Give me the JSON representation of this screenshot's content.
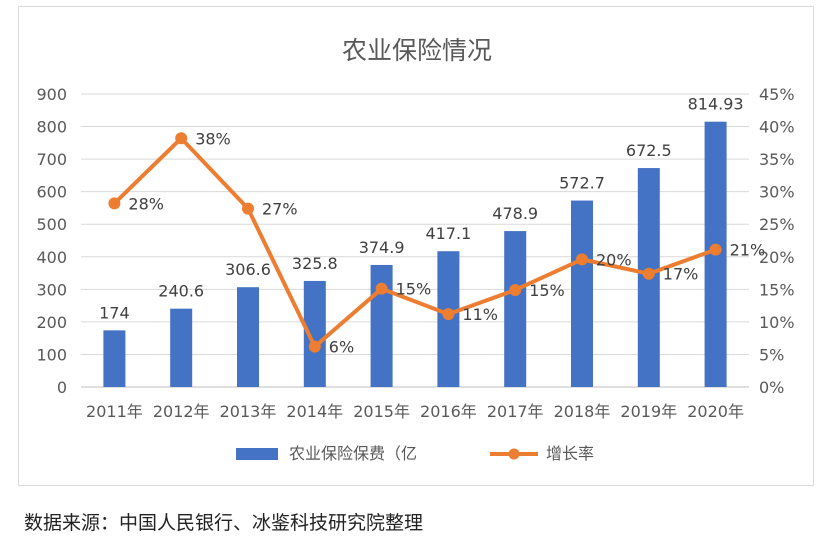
{
  "chart_data": {
    "type": "bar",
    "title": "农业保险情况",
    "categories": [
      "2011年",
      "2012年",
      "2013年",
      "2014年",
      "2015年",
      "2016年",
      "2017年",
      "2018年",
      "2019年",
      "2020年"
    ],
    "series": [
      {
        "name": "农业保险保费（亿",
        "type": "bar",
        "axis": "left",
        "color": "#4472C4",
        "values": [
          174,
          240.6,
          306.6,
          325.8,
          374.9,
          417.1,
          478.9,
          572.7,
          672.5,
          814.93
        ],
        "labels": [
          "174",
          "240.6",
          "306.6",
          "325.8",
          "374.9",
          "417.1",
          "478.9",
          "572.7",
          "672.5",
          "814.93"
        ]
      },
      {
        "name": "增长率",
        "type": "line",
        "axis": "right",
        "color": "#ED7D31",
        "values": [
          28.2,
          38.2,
          27.4,
          6.2,
          15.1,
          11.2,
          14.9,
          19.6,
          17.4,
          21.1
        ],
        "labels": [
          "28%",
          "38%",
          "27%",
          "6%",
          "15%",
          "11%",
          "15%",
          "20%",
          "17%",
          "21%"
        ]
      }
    ],
    "left_axis": {
      "min": 0,
      "max": 900,
      "step": 100,
      "ticks": [
        "0",
        "100",
        "200",
        "300",
        "400",
        "500",
        "600",
        "700",
        "800",
        "900"
      ]
    },
    "right_axis": {
      "min": 0,
      "max": 45,
      "step": 5,
      "ticks": [
        "0%",
        "5%",
        "10%",
        "15%",
        "20%",
        "25%",
        "30%",
        "35%",
        "40%",
        "45%"
      ]
    },
    "grid": true,
    "legend": "bottom"
  },
  "source_note": "数据来源：中国人民银行、冰鉴科技研究院整理"
}
